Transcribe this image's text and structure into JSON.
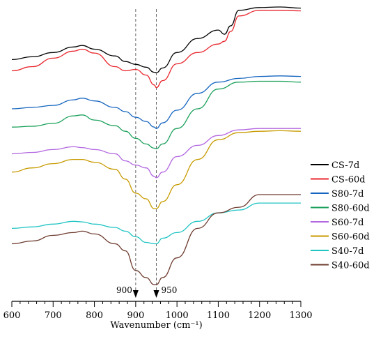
{
  "chart_data": {
    "type": "line",
    "title": "",
    "xlabel": "Wavenumber (cm⁻¹)",
    "ylabel": "",
    "xlim": [
      600,
      1300
    ],
    "xticks": [
      600,
      700,
      800,
      900,
      1000,
      1100,
      1200,
      1300
    ],
    "x_minor_step": 20,
    "grid": false,
    "legend_position": "right",
    "y_axis": "absorbance, offset traces, no scale shown",
    "reference_lines": [
      {
        "x": 900,
        "label": "900",
        "style": "dashed"
      },
      {
        "x": 950,
        "label": "950",
        "style": "dashed"
      }
    ],
    "series": [
      {
        "name": "CS-7d",
        "color": "#000000",
        "points": [
          [
            600,
            0.25
          ],
          [
            650,
            0.35
          ],
          [
            700,
            0.5
          ],
          [
            750,
            0.7
          ],
          [
            770,
            0.75
          ],
          [
            800,
            0.62
          ],
          [
            850,
            0.38
          ],
          [
            875,
            0.18
          ],
          [
            900,
            0.08
          ],
          [
            925,
            -0.02
          ],
          [
            945,
            -0.2
          ],
          [
            950,
            -0.22
          ],
          [
            965,
            -0.05
          ],
          [
            1000,
            0.5
          ],
          [
            1050,
            1.0
          ],
          [
            1100,
            1.3
          ],
          [
            1115,
            1.15
          ],
          [
            1130,
            1.45
          ],
          [
            1150,
            2.0
          ],
          [
            1200,
            2.1
          ],
          [
            1250,
            2.12
          ],
          [
            1300,
            2.08
          ]
        ]
      },
      {
        "name": "CS-60d",
        "color": "#e8262c",
        "points": [
          [
            600,
            -0.15
          ],
          [
            650,
            0.0
          ],
          [
            700,
            0.3
          ],
          [
            750,
            0.55
          ],
          [
            770,
            0.62
          ],
          [
            800,
            0.48
          ],
          [
            850,
            0.0
          ],
          [
            875,
            -0.15
          ],
          [
            900,
            -0.1
          ],
          [
            925,
            -0.3
          ],
          [
            945,
            -0.65
          ],
          [
            950,
            -0.75
          ],
          [
            965,
            -0.5
          ],
          [
            1000,
            0.1
          ],
          [
            1050,
            0.5
          ],
          [
            1100,
            0.8
          ],
          [
            1115,
            0.9
          ],
          [
            1130,
            1.25
          ],
          [
            1150,
            1.8
          ],
          [
            1200,
            2.0
          ],
          [
            1250,
            2.0
          ],
          [
            1300,
            1.98
          ]
        ]
      },
      {
        "name": "S80-7d",
        "color": "#1565c0",
        "points": [
          [
            600,
            -1.5
          ],
          [
            650,
            -1.45
          ],
          [
            700,
            -1.38
          ],
          [
            750,
            -1.18
          ],
          [
            770,
            -1.12
          ],
          [
            800,
            -1.22
          ],
          [
            850,
            -1.45
          ],
          [
            875,
            -1.6
          ],
          [
            900,
            -1.8
          ],
          [
            925,
            -1.95
          ],
          [
            945,
            -2.15
          ],
          [
            950,
            -2.2
          ],
          [
            965,
            -2.0
          ],
          [
            1000,
            -1.55
          ],
          [
            1050,
            -0.95
          ],
          [
            1100,
            -0.55
          ],
          [
            1150,
            -0.42
          ],
          [
            1200,
            -0.35
          ],
          [
            1250,
            -0.33
          ],
          [
            1300,
            -0.35
          ]
        ]
      },
      {
        "name": "S80-60d",
        "color": "#1aa05a",
        "points": [
          [
            600,
            -2.15
          ],
          [
            650,
            -2.12
          ],
          [
            700,
            -2.02
          ],
          [
            750,
            -1.75
          ],
          [
            770,
            -1.72
          ],
          [
            800,
            -1.9
          ],
          [
            850,
            -2.1
          ],
          [
            875,
            -2.3
          ],
          [
            900,
            -2.55
          ],
          [
            925,
            -2.75
          ],
          [
            945,
            -2.9
          ],
          [
            950,
            -2.92
          ],
          [
            965,
            -2.75
          ],
          [
            1000,
            -2.2
          ],
          [
            1050,
            -1.5
          ],
          [
            1100,
            -0.8
          ],
          [
            1150,
            -0.55
          ],
          [
            1200,
            -0.52
          ],
          [
            1250,
            -0.52
          ],
          [
            1300,
            -0.55
          ]
        ]
      },
      {
        "name": "S60-7d",
        "color": "#b266e0",
        "points": [
          [
            600,
            -3.1
          ],
          [
            650,
            -3.05
          ],
          [
            700,
            -2.95
          ],
          [
            750,
            -2.85
          ],
          [
            770,
            -2.88
          ],
          [
            800,
            -2.95
          ],
          [
            850,
            -3.1
          ],
          [
            875,
            -3.35
          ],
          [
            900,
            -3.5
          ],
          [
            925,
            -3.6
          ],
          [
            945,
            -3.9
          ],
          [
            950,
            -3.95
          ],
          [
            965,
            -3.75
          ],
          [
            1000,
            -3.2
          ],
          [
            1050,
            -2.8
          ],
          [
            1100,
            -2.45
          ],
          [
            1150,
            -2.25
          ],
          [
            1200,
            -2.2
          ],
          [
            1250,
            -2.2
          ],
          [
            1300,
            -2.2
          ]
        ]
      },
      {
        "name": "S60-60d",
        "color": "#c89a00",
        "points": [
          [
            600,
            -3.75
          ],
          [
            650,
            -3.6
          ],
          [
            700,
            -3.45
          ],
          [
            750,
            -3.3
          ],
          [
            770,
            -3.3
          ],
          [
            800,
            -3.4
          ],
          [
            850,
            -3.65
          ],
          [
            875,
            -4.0
          ],
          [
            900,
            -4.5
          ],
          [
            925,
            -4.7
          ],
          [
            945,
            -5.05
          ],
          [
            950,
            -5.05
          ],
          [
            965,
            -4.8
          ],
          [
            1000,
            -4.2
          ],
          [
            1050,
            -3.3
          ],
          [
            1100,
            -2.6
          ],
          [
            1150,
            -2.35
          ],
          [
            1200,
            -2.3
          ],
          [
            1250,
            -2.28
          ],
          [
            1300,
            -2.3
          ]
        ]
      },
      {
        "name": "S40-7d",
        "color": "#20c4c4",
        "points": [
          [
            600,
            -5.75
          ],
          [
            650,
            -5.7
          ],
          [
            700,
            -5.6
          ],
          [
            750,
            -5.5
          ],
          [
            770,
            -5.52
          ],
          [
            800,
            -5.6
          ],
          [
            850,
            -5.72
          ],
          [
            875,
            -5.85
          ],
          [
            900,
            -6.05
          ],
          [
            925,
            -6.25
          ],
          [
            945,
            -6.3
          ],
          [
            950,
            -6.3
          ],
          [
            965,
            -6.1
          ],
          [
            1000,
            -5.9
          ],
          [
            1050,
            -5.5
          ],
          [
            1100,
            -5.2
          ],
          [
            1150,
            -5.1
          ],
          [
            1200,
            -4.85
          ],
          [
            1250,
            -4.85
          ],
          [
            1300,
            -4.85
          ]
        ]
      },
      {
        "name": "S40-60d",
        "color": "#6d3b2e",
        "points": [
          [
            600,
            -6.3
          ],
          [
            650,
            -6.2
          ],
          [
            700,
            -6.0
          ],
          [
            750,
            -5.9
          ],
          [
            770,
            -5.85
          ],
          [
            800,
            -5.95
          ],
          [
            850,
            -6.3
          ],
          [
            875,
            -6.55
          ],
          [
            900,
            -7.25
          ],
          [
            925,
            -7.5
          ],
          [
            945,
            -7.75
          ],
          [
            950,
            -7.75
          ],
          [
            965,
            -7.5
          ],
          [
            1000,
            -6.8
          ],
          [
            1050,
            -5.75
          ],
          [
            1100,
            -5.2
          ],
          [
            1150,
            -5.0
          ],
          [
            1200,
            -4.55
          ],
          [
            1250,
            -4.55
          ],
          [
            1300,
            -4.55
          ]
        ]
      }
    ]
  }
}
